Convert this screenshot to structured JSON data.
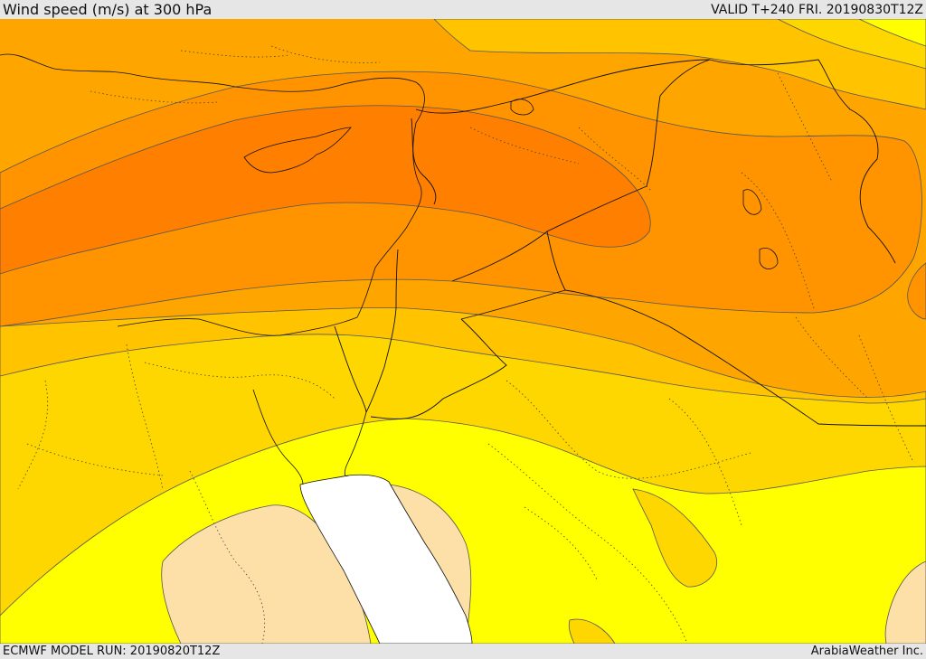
{
  "header": {
    "title": "Wind speed (m/s) at 300 hPa",
    "valid_time": "VALID T+240 FRI. 20190830T12Z"
  },
  "footer": {
    "model_run": "ECMWF MODEL RUN: 20190820T12Z",
    "credit": "ArabiaWeather Inc."
  },
  "map": {
    "field": "wind-speed-300hPa",
    "shading_colors": {
      "lowest": "#fde0a8",
      "low": "#ffff00",
      "moderate": "#ffd700",
      "elevated": "#ffc300",
      "high": "#ffa500",
      "higher": "#ff9400",
      "core": "#ff7f00"
    },
    "sea_color": "#ffffff",
    "contour_color": "#555555",
    "border_color": "#111111"
  }
}
